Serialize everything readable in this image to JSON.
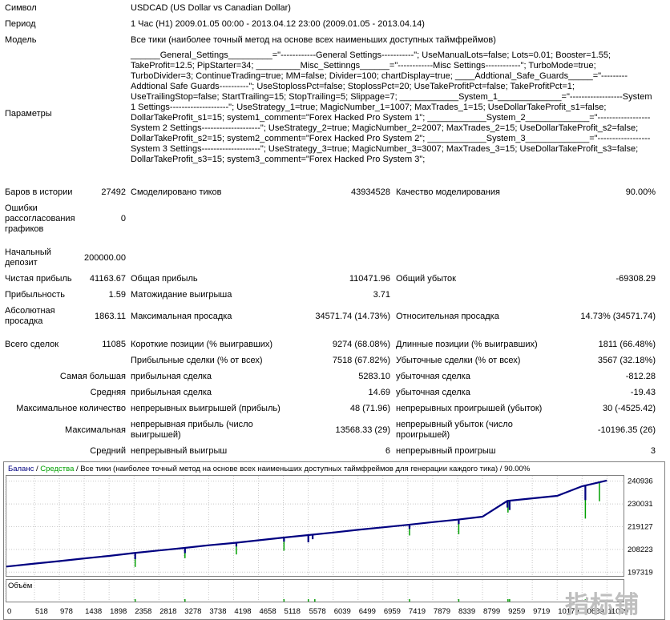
{
  "header": {
    "symbol_label": "Символ",
    "symbol_value": "USDCAD (US Dollar vs Canadian Dollar)",
    "period_label": "Период",
    "period_value": "1 Час (H1) 2009.01.05 00:00 - 2013.04.12 23:00 (2009.01.05 - 2013.04.14)",
    "model_label": "Модель",
    "model_value": "Все тики (наиболее точный метод на основе всех наименьших доступных таймфреймов)",
    "params_label": "Параметры",
    "params_value": "______General_Settings_________=\"------------General Settings-----------\"; UseManualLots=false; Lots=0.01; Booster=1.55; TakeProfit=12.5; PipStarter=34; _________Misc_Settinngs______=\"------------Misc Settings------------\"; TurboMode=true; TurboDivider=3; ContinueTrading=true; MM=false; Divider=100; chartDisplay=true; ____Addtional_Safe_Guards_____=\"---------Addtional Safe Guards----------\"; UseStoplossPct=false; StoplossPct=20; UseTakeProfitPct=false; TakeProfitPct=1; UseTrailingStop=false; StartTrailing=15; StopTrailing=5; Slippage=7; ____________System_1_____________=\"------------------System 1 Settings--------------------\"; UseStrategy_1=true; MagicNumber_1=1007; MaxTrades_1=15; UseDollarTakeProfit_s1=false; DollarTakeProfit_s1=15; system1_comment=\"Forex Hacked Pro System 1\"; ____________System_2_____________=\"------------------System 2 Settings--------------------\"; UseStrategy_2=true; MagicNumber_2=2007; MaxTrades_2=15; UseDollarTakeProfit_s2=false; DollarTakeProfit_s2=15; system2_comment=\"Forex Hacked Pro System 2\"; ____________System_3_____________=\"------------------System 3 Settings--------------------\"; UseStrategy_3=true; MagicNumber_3=3007; MaxTrades_3=15; UseDollarTakeProfit_s3=false; DollarTakeProfit_s3=15; system3_comment=\"Forex Hacked Pro System 3\";"
  },
  "stats": {
    "bars_label": "Баров в истории",
    "bars_value": "27492",
    "ticks_label": "Смоделировано тиков",
    "ticks_value": "43934528",
    "quality_label": "Качество моделирования",
    "quality_value": "90.00%",
    "errors_label": "Ошибки рассогласования графиков",
    "errors_value": "0",
    "deposit_label": "Начальный депозит",
    "deposit_value": "200000.00",
    "net_label": "Чистая прибыль",
    "net_value": "41163.67",
    "gross_profit_label": "Общая прибыль",
    "gross_profit_value": "110471.96",
    "gross_loss_label": "Общий убыток",
    "gross_loss_value": "-69308.29",
    "pf_label": "Прибыльность",
    "pf_value": "1.59",
    "expected_label": "Матожидание выигрыша",
    "expected_value": "3.71",
    "abs_dd_label": "Абсолютная просадка",
    "abs_dd_value": "1863.11",
    "max_dd_label": "Максимальная просадка",
    "max_dd_value": "34571.74 (14.73%)",
    "rel_dd_label": "Относительная просадка",
    "rel_dd_value": "14.73% (34571.74)",
    "total_label": "Всего сделок",
    "total_value": "11085",
    "short_label": "Короткие позиции (% выигравших)",
    "short_value": "9274 (68.08%)",
    "long_label": "Длинные позиции (% выигравших)",
    "long_value": "1811 (66.48%)",
    "profit_trades_label": "Прибыльные сделки (% от всех)",
    "profit_trades_value": "7518 (67.82%)",
    "loss_trades_label": "Убыточные сделки (% от всех)",
    "loss_trades_value": "3567 (32.18%)",
    "largest_label": "Самая большая",
    "largest_profit_label": "прибыльная сделка",
    "largest_profit_value": "5283.10",
    "largest_loss_label": "убыточная сделка",
    "largest_loss_value": "-812.28",
    "average_label": "Средняя",
    "average_profit_label": "прибыльная сделка",
    "average_profit_value": "14.69",
    "average_loss_label": "убыточная сделка",
    "average_loss_value": "-19.43",
    "maxcount_label": "Максимальное количество",
    "maxcount_wins_label": "непрерывных выигрышей (прибыль)",
    "maxcount_wins_value": "48 (71.96)",
    "maxcount_losses_label": "непрерывных проигрышей (убыток)",
    "maxcount_losses_value": "30 (-4525.42)",
    "maximal_label": "Максимальная",
    "maximal_profit_label": "непрерывная прибыль (число выигрышей)",
    "maximal_profit_value": "13568.33 (29)",
    "maximal_loss_label": "непрерывный убыток (число проигрышей)",
    "maximal_loss_value": "-10196.35 (26)",
    "avg_label": "Средний",
    "avg_wins_label": "непрерывный выигрыш",
    "avg_wins_value": "6",
    "avg_losses_label": "непрерывный проигрыш",
    "avg_losses_value": "3"
  },
  "chart_data": {
    "type": "line",
    "header": {
      "balance": "Баланс",
      "sep1": " / ",
      "equity": "Средства",
      "rest": " / Все тики (наиболее точный метод на основе всех наименьших доступных таймфреймов для генерации каждого тика) / 90.00%"
    },
    "volume_label": "Объём",
    "y_ticks": [
      "240936",
      "230031",
      "219127",
      "208223",
      "197319"
    ],
    "y_tick_values": [
      240936,
      230031,
      219127,
      208223,
      197319
    ],
    "ylim": [
      195500,
      243500
    ],
    "x_ticks": [
      "0",
      "518",
      "978",
      "1438",
      "1898",
      "2358",
      "2818",
      "3278",
      "3738",
      "4198",
      "4658",
      "5118",
      "5578",
      "6039",
      "6499",
      "6959",
      "7419",
      "7879",
      "8339",
      "8799",
      "9259",
      "9719",
      "10179",
      "10639",
      "11099"
    ],
    "x_tick_values": [
      0,
      518,
      978,
      1438,
      1898,
      2358,
      2818,
      3278,
      3738,
      4198,
      4658,
      5118,
      5578,
      6039,
      6499,
      6959,
      7419,
      7879,
      8339,
      8799,
      9259,
      9719,
      10179,
      10639,
      11099
    ],
    "xlim": [
      0,
      11420
    ],
    "grid": true,
    "colors": {
      "balance": "#000080",
      "equity": "#00a000",
      "grid": "#c8c8c8",
      "volume": "#00a000"
    },
    "series": [
      {
        "name": "Баланс",
        "x": [
          0,
          518,
          978,
          1438,
          1898,
          2358,
          2818,
          3278,
          3738,
          4198,
          4658,
          5118,
          5578,
          6039,
          6499,
          6959,
          7419,
          7879,
          8339,
          8799,
          9259,
          9719,
          10179,
          10639,
          11099,
          11085
        ],
        "values": [
          200000,
          201400,
          202600,
          203900,
          205100,
          206500,
          207700,
          208900,
          210200,
          211300,
          212600,
          213900,
          215100,
          216300,
          217600,
          218800,
          220000,
          221300,
          222500,
          223900,
          231500,
          232700,
          233900,
          238500,
          241200,
          241164
        ]
      },
      {
        "name": "Средства",
        "x": [
          2380,
          3300,
          4250,
          5130,
          5580,
          7450,
          8360,
          9270,
          9300,
          10700,
          10960
        ],
        "values": [
          199800,
          204000,
          205800,
          207600,
          211800,
          214900,
          215500,
          225900,
          227200,
          223000,
          231300
        ]
      }
    ],
    "drawdowns": [
      {
        "x": 2380,
        "depth": 3000
      },
      {
        "x": 3300,
        "depth": 2500
      },
      {
        "x": 4250,
        "depth": 1800
      },
      {
        "x": 5130,
        "depth": 2000
      },
      {
        "x": 5580,
        "depth": 3500
      },
      {
        "x": 5660,
        "depth": 2200
      },
      {
        "x": 7450,
        "depth": 2000
      },
      {
        "x": 8360,
        "depth": 2200
      },
      {
        "x": 9260,
        "depth": 3200
      },
      {
        "x": 9300,
        "depth": 4500
      },
      {
        "x": 10700,
        "depth": 7000
      }
    ],
    "volume_spikes": [
      2380,
      3300,
      5130,
      5580,
      5700,
      7450,
      8360,
      9270,
      9300,
      10700
    ]
  }
}
